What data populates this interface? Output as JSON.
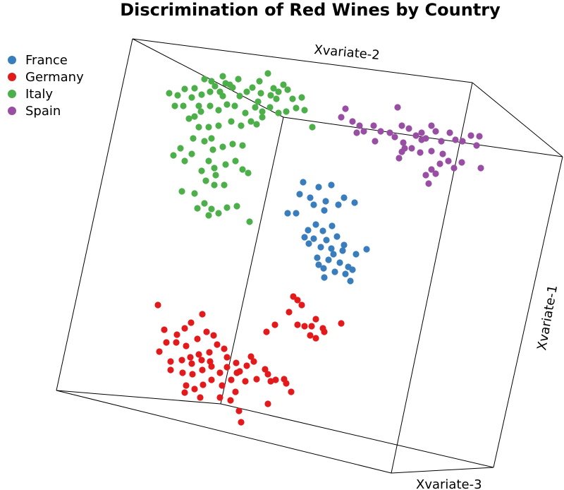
{
  "chart_data": {
    "type": "scatter",
    "title": "Discrimination of Red Wines by Country",
    "dimensions": 3,
    "axis_labels": [
      "Xvariate-1",
      "Xvariate-2",
      "Xvariate-3"
    ],
    "legend_position": "top-left",
    "series": [
      {
        "name": "France",
        "color": "#3a7dbd",
        "points": [
          [
            430,
            258
          ],
          [
            452,
            265
          ],
          [
            470,
            262
          ],
          [
            425,
            275
          ],
          [
            440,
            280
          ],
          [
            462,
            285
          ],
          [
            480,
            290
          ],
          [
            460,
            298
          ],
          [
            445,
            290
          ],
          [
            420,
            302
          ],
          [
            408,
            302
          ],
          [
            488,
            280
          ],
          [
            503,
            287
          ],
          [
            437,
            326
          ],
          [
            458,
            327
          ],
          [
            445,
            338
          ],
          [
            463,
            340
          ],
          [
            478,
            335
          ],
          [
            455,
            350
          ],
          [
            470,
            352
          ],
          [
            488,
            347
          ],
          [
            450,
            365
          ],
          [
            466,
            368
          ],
          [
            482,
            372
          ],
          [
            494,
            378
          ],
          [
            459,
            380
          ],
          [
            475,
            385
          ],
          [
            490,
            388
          ],
          [
            500,
            382
          ],
          [
            520,
            353
          ],
          [
            460,
            393
          ],
          [
            438,
            345
          ],
          [
            432,
            336
          ],
          [
            448,
            318
          ],
          [
            471,
            320
          ],
          [
            486,
            355
          ],
          [
            505,
            360
          ],
          [
            497,
            398
          ],
          [
            452,
            375
          ],
          [
            473,
            360
          ]
        ]
      },
      {
        "name": "Germany",
        "color": "#e31a1c",
        "points": [
          [
            224,
            432
          ],
          [
            287,
            445
          ],
          [
            271,
            457
          ],
          [
            262,
            465
          ],
          [
            251,
            474
          ],
          [
            233,
            467
          ],
          [
            236,
            485
          ],
          [
            250,
            485
          ],
          [
            264,
            490
          ],
          [
            280,
            480
          ],
          [
            293,
            470
          ],
          [
            303,
            475
          ],
          [
            308,
            488
          ],
          [
            318,
            494
          ],
          [
            322,
            506
          ],
          [
            335,
            514
          ],
          [
            297,
            499
          ],
          [
            282,
            502
          ],
          [
            270,
            506
          ],
          [
            258,
            510
          ],
          [
            242,
            512
          ],
          [
            226,
            498
          ],
          [
            242,
            524
          ],
          [
            259,
            528
          ],
          [
            273,
            530
          ],
          [
            287,
            524
          ],
          [
            300,
            519
          ],
          [
            312,
            528
          ],
          [
            322,
            520
          ],
          [
            336,
            528
          ],
          [
            350,
            518
          ],
          [
            360,
            512
          ],
          [
            356,
            505
          ],
          [
            328,
            538
          ],
          [
            315,
            546
          ],
          [
            300,
            538
          ],
          [
            288,
            545
          ],
          [
            276,
            551
          ],
          [
            264,
            546
          ],
          [
            262,
            556
          ],
          [
            284,
            563
          ],
          [
            312,
            563
          ],
          [
            340,
            526
          ],
          [
            348,
            540
          ],
          [
            364,
            537
          ],
          [
            380,
            530
          ],
          [
            376,
            523
          ],
          [
            391,
            538
          ],
          [
            403,
            537
          ],
          [
            406,
            543
          ],
          [
            413,
            555
          ],
          [
            384,
            540
          ],
          [
            334,
            555
          ],
          [
            327,
            567
          ],
          [
            339,
            582
          ],
          [
            342,
            598
          ],
          [
            380,
            572
          ],
          [
            390,
            460
          ],
          [
            416,
            420
          ],
          [
            422,
            425
          ],
          [
            428,
            432
          ],
          [
            410,
            442
          ],
          [
            422,
            460
          ],
          [
            432,
            462
          ],
          [
            442,
            462
          ],
          [
            458,
            465
          ],
          [
            460,
            470
          ],
          [
            484,
            458
          ],
          [
            448,
            452
          ],
          [
            448,
            479
          ],
          [
            440,
            475
          ],
          [
            378,
            470
          ],
          [
            272,
            515
          ],
          [
            286,
            510
          ],
          [
            298,
            512
          ]
        ]
      },
      {
        "name": "Italy",
        "color": "#4daf4a",
        "points": [
          [
            240,
            132
          ],
          [
            252,
            135
          ],
          [
            262,
            126
          ],
          [
            276,
            125
          ],
          [
            290,
            112
          ],
          [
            300,
            115
          ],
          [
            316,
            108
          ],
          [
            320,
            118
          ],
          [
            305,
            122
          ],
          [
            298,
            130
          ],
          [
            286,
            134
          ],
          [
            272,
            138
          ],
          [
            260,
            150
          ],
          [
            248,
            150
          ],
          [
            330,
            124
          ],
          [
            340,
            136
          ],
          [
            350,
            130
          ],
          [
            358,
            124
          ],
          [
            368,
            115
          ],
          [
            380,
            104
          ],
          [
            388,
            125
          ],
          [
            395,
            130
          ],
          [
            402,
            120
          ],
          [
            408,
            127
          ],
          [
            415,
            140
          ],
          [
            428,
            138
          ],
          [
            432,
            156
          ],
          [
            420,
            153
          ],
          [
            406,
            158
          ],
          [
            395,
            160
          ],
          [
            383,
            152
          ],
          [
            372,
            158
          ],
          [
            362,
            152
          ],
          [
            348,
            160
          ],
          [
            333,
            150
          ],
          [
            322,
            148
          ],
          [
            310,
            156
          ],
          [
            298,
            150
          ],
          [
            285,
            158
          ],
          [
            276,
            165
          ],
          [
            268,
            168
          ],
          [
            282,
            180
          ],
          [
            296,
            180
          ],
          [
            310,
            178
          ],
          [
            328,
            172
          ],
          [
            342,
            178
          ],
          [
            356,
            172
          ],
          [
            364,
            176
          ],
          [
            372,
            166
          ],
          [
            443,
            180
          ],
          [
            290,
            200
          ],
          [
            302,
            212
          ],
          [
            316,
            208
          ],
          [
            330,
            204
          ],
          [
            344,
            206
          ],
          [
            272,
            218
          ],
          [
            256,
            210
          ],
          [
            246,
            220
          ],
          [
            262,
            228
          ],
          [
            296,
            228
          ],
          [
            304,
            238
          ],
          [
            320,
            233
          ],
          [
            334,
            228
          ],
          [
            344,
            240
          ],
          [
            352,
            245
          ],
          [
            306,
            248
          ],
          [
            292,
            256
          ],
          [
            258,
            271
          ],
          [
            276,
            274
          ],
          [
            290,
            288
          ],
          [
            300,
            296
          ],
          [
            310,
            302
          ],
          [
            322,
            294
          ],
          [
            336,
            292
          ],
          [
            354,
            314
          ],
          [
            280,
            295
          ],
          [
            296,
            305
          ],
          [
            304,
            262
          ],
          [
            318,
            262
          ],
          [
            286,
            242
          ],
          [
            300,
            196
          ],
          [
            274,
            196
          ],
          [
            282,
            150
          ],
          [
            316,
            136
          ],
          [
            338,
            112
          ],
          [
            370,
            132
          ],
          [
            392,
            140
          ],
          [
            312,
            130
          ],
          [
            326,
            120
          ],
          [
            366,
            144
          ],
          [
            384,
            135
          ]
        ]
      },
      {
        "name": "Spain",
        "color": "#984ea3",
        "points": [
          [
            490,
            154
          ],
          [
            564,
            152
          ],
          [
            484,
            166
          ],
          [
            500,
            172
          ],
          [
            510,
            178
          ],
          [
            516,
            186
          ],
          [
            530,
            178
          ],
          [
            540,
            186
          ],
          [
            553,
            188
          ],
          [
            570,
            178
          ],
          [
            580,
            182
          ],
          [
            590,
            192
          ],
          [
            598,
            188
          ],
          [
            604,
            196
          ],
          [
            618,
            186
          ],
          [
            626,
            200
          ],
          [
            638,
            188
          ],
          [
            646,
            198
          ],
          [
            656,
            200
          ],
          [
            668,
            192
          ],
          [
            676,
            206
          ],
          [
            680,
            193
          ],
          [
            682,
            238
          ],
          [
            560,
            194
          ],
          [
            572,
            202
          ],
          [
            584,
            210
          ],
          [
            596,
            216
          ],
          [
            612,
            214
          ],
          [
            628,
            218
          ],
          [
            636,
            228
          ],
          [
            624,
            232
          ],
          [
            612,
            240
          ],
          [
            604,
            248
          ],
          [
            608,
            260
          ],
          [
            618,
            246
          ],
          [
            570,
            215
          ],
          [
            566,
            224
          ],
          [
            574,
            210
          ],
          [
            532,
            200
          ],
          [
            506,
            188
          ],
          [
            644,
            238
          ],
          [
            655,
            230
          ],
          [
            612,
            178
          ],
          [
            598,
            198
          ]
        ]
      }
    ]
  }
}
